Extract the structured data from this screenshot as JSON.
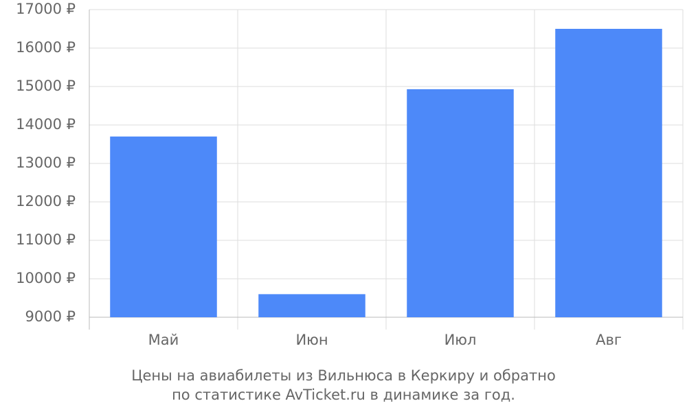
{
  "chart_data": {
    "type": "bar",
    "title": "Цены на авиабилеты из Вильнюса в Керкиру и обратно",
    "subtitle": "по статистике AvTicket.ru в динамике за год.",
    "categories": [
      "Май",
      "Июн",
      "Июл",
      "Авг"
    ],
    "values": [
      13700,
      9600,
      14930,
      16500
    ],
    "color": "#4d89f9",
    "ylim": [
      9000,
      17000
    ],
    "yticks": [
      {
        "value": 9000,
        "label": "9000 ₽"
      },
      {
        "value": 10000,
        "label": "10000 ₽"
      },
      {
        "value": 11000,
        "label": "11000 ₽"
      },
      {
        "value": 12000,
        "label": "12000 ₽"
      },
      {
        "value": 13000,
        "label": "13000 ₽"
      },
      {
        "value": 14000,
        "label": "14000 ₽"
      },
      {
        "value": 15000,
        "label": "15000 ₽"
      },
      {
        "value": 16000,
        "label": "16000 ₽"
      },
      {
        "value": 17000,
        "label": "17000 ₽"
      }
    ],
    "grid": true
  }
}
